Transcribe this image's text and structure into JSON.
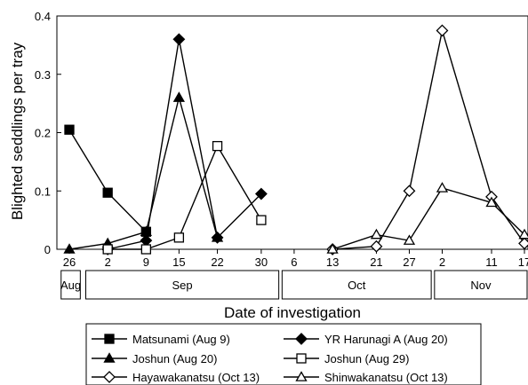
{
  "chart_data": {
    "type": "line",
    "ylabel": "Blighted seddlings per tray",
    "xlabel": "Date of investigation",
    "ylim": [
      0,
      0.4
    ],
    "yticks": [
      0,
      0.1,
      0.2,
      0.3,
      0.4
    ],
    "ytick_labels": [
      "0",
      "0.1",
      "0.2",
      "0.3",
      "0.4"
    ],
    "x_unit": "day offset from Aug 26",
    "xticks": [
      {
        "x": 0,
        "label": "26"
      },
      {
        "x": 7,
        "label": "2"
      },
      {
        "x": 14,
        "label": "9"
      },
      {
        "x": 20,
        "label": "15"
      },
      {
        "x": 27,
        "label": "22"
      },
      {
        "x": 35,
        "label": "30"
      },
      {
        "x": 41,
        "label": "6"
      },
      {
        "x": 48,
        "label": "13"
      },
      {
        "x": 56,
        "label": "21"
      },
      {
        "x": 62,
        "label": "27"
      },
      {
        "x": 68,
        "label": "2"
      },
      {
        "x": 77,
        "label": "11"
      },
      {
        "x": 83,
        "label": "17"
      }
    ],
    "month_bands": [
      {
        "label": "Aug",
        "from": -1.5,
        "to": 2.0
      },
      {
        "label": "Sep",
        "from": 3.0,
        "to": 38.2
      },
      {
        "label": "Oct",
        "from": 38.8,
        "to": 66.0
      },
      {
        "label": "Nov",
        "from": 66.6,
        "to": 85
      }
    ],
    "series": [
      {
        "name": "Matsunami (Aug 9)",
        "marker": "square",
        "fill": "filled",
        "x": [
          0,
          7,
          14
        ],
        "y": [
          0.205,
          0.097,
          0.03
        ]
      },
      {
        "name": "YR Harunagi A (Aug 20)",
        "marker": "diamond",
        "fill": "filled",
        "x": [
          7,
          14,
          20,
          27,
          35
        ],
        "y": [
          0.0,
          0.015,
          0.36,
          0.02,
          0.095
        ]
      },
      {
        "name": "Joshun (Aug 20)",
        "marker": "triangle",
        "fill": "filled",
        "x": [
          0,
          7,
          14,
          20,
          27
        ],
        "y": [
          0.0,
          0.01,
          0.03,
          0.26,
          0.02
        ]
      },
      {
        "name": "Joshun (Aug 29)",
        "marker": "square",
        "fill": "open",
        "x": [
          7,
          14,
          20,
          27,
          35
        ],
        "y": [
          0.0,
          0.0,
          0.02,
          0.177,
          0.05
        ]
      },
      {
        "name": "Hayawakanatsu (Oct 13)",
        "marker": "diamond",
        "fill": "open",
        "x": [
          48,
          56,
          62,
          68,
          77,
          83
        ],
        "y": [
          0.0,
          0.005,
          0.1,
          0.375,
          0.09,
          0.01
        ]
      },
      {
        "name": "Shinwakanatsu (Oct 13)",
        "marker": "triangle",
        "fill": "open",
        "x": [
          48,
          56,
          62,
          68,
          77,
          83
        ],
        "y": [
          0.0,
          0.025,
          0.015,
          0.105,
          0.08,
          0.025
        ]
      }
    ]
  }
}
